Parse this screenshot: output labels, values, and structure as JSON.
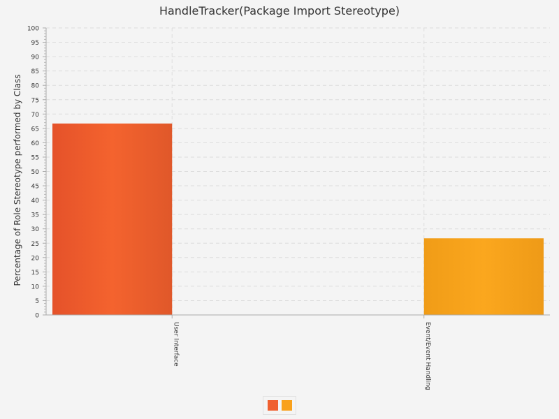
{
  "chart_data": {
    "type": "bar",
    "title": "HandleTracker(Package Import Stereotype)",
    "xlabel": "",
    "ylabel": "Percentage of Role Stereotype performed by Class",
    "ylim": [
      0,
      100
    ],
    "ytick_step": 5,
    "categories": [
      "User Interface",
      "Event/Event Handling"
    ],
    "series": [
      {
        "name": "",
        "values": [
          66.7,
          0
        ],
        "color": "#f06030"
      },
      {
        "name": "",
        "values": [
          0,
          26.7
        ],
        "color": "#f9a11b"
      }
    ],
    "grid": true,
    "legend": "bottom"
  }
}
